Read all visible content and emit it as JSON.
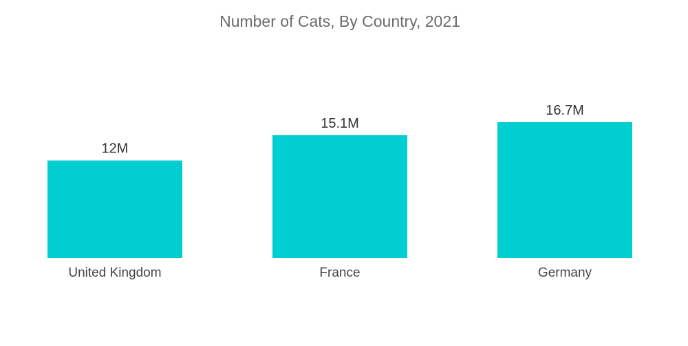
{
  "chart_data": {
    "type": "bar",
    "title": "Number of Cats, By Country, 2021",
    "xlabel": "",
    "ylabel": "",
    "categories": [
      "United Kingdom",
      "France",
      "Germany"
    ],
    "values": [
      12,
      15.1,
      16.7
    ],
    "value_labels": [
      "12M",
      "15.1M",
      "16.7M"
    ],
    "unit": "M",
    "ylim": [
      0,
      16.7
    ],
    "grid": false,
    "legend": "none",
    "bar_color": "#00CED1"
  }
}
